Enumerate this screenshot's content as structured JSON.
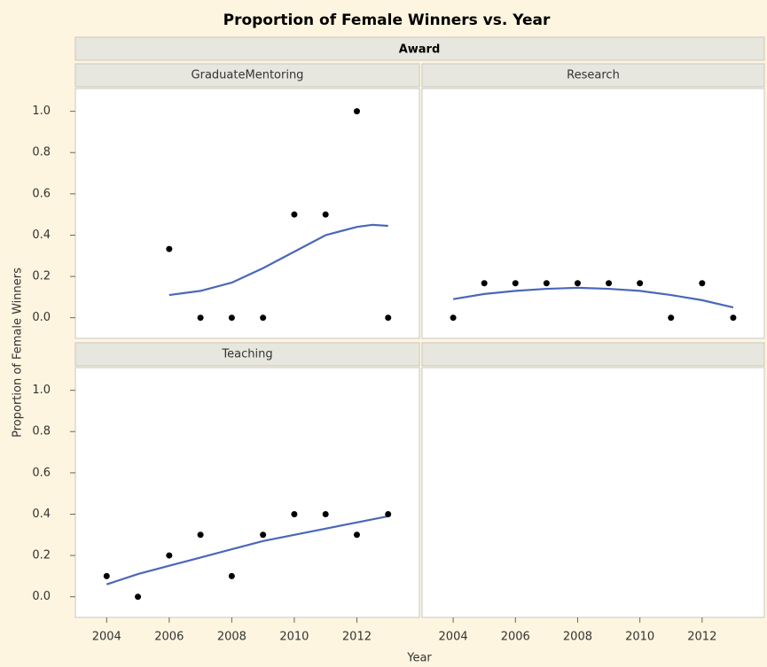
{
  "page": {
    "title": "Proportion of Female Winners vs. Year",
    "facet_label": "Award",
    "xlabel": "Year",
    "ylabel": "Proportion of Female Winners"
  },
  "chart_data": [
    {
      "type": "scatter",
      "name": "GraduateMentoring",
      "color": "#000000",
      "fit_color": "#4a68b8",
      "x": [
        2006,
        2007,
        2008,
        2009,
        2010,
        2011,
        2012,
        2013
      ],
      "values": [
        0.333,
        0,
        0,
        0,
        0.5,
        0.5,
        1.0,
        0
      ],
      "fit": {
        "x": [
          2006,
          2007,
          2008,
          2009,
          2010,
          2011,
          2012,
          2012.5,
          2013
        ],
        "values": [
          0.11,
          0.13,
          0.17,
          0.24,
          0.32,
          0.4,
          0.44,
          0.45,
          0.445
        ]
      },
      "xlim": [
        2003,
        2014
      ],
      "ylim": [
        -0.1,
        1.11
      ],
      "yticks": [
        {
          "value": 1.0,
          "label": "1.0"
        },
        0.8,
        0.6,
        0.4,
        0.2,
        {
          "value": 0,
          "label": "0.0"
        }
      ]
    },
    {
      "type": "scatter",
      "name": "Research",
      "color": "#000000",
      "fit_color": "#4a68b8",
      "x": [
        2004,
        2005,
        2006,
        2007,
        2008,
        2009,
        2010,
        2011,
        2012,
        2013
      ],
      "values": [
        0,
        0.167,
        0.167,
        0.167,
        0.167,
        0.167,
        0.167,
        0,
        0.167,
        0
      ],
      "fit": {
        "x": [
          2004,
          2005,
          2006,
          2007,
          2008,
          2009,
          2010,
          2011,
          2012,
          2013
        ],
        "values": [
          0.09,
          0.115,
          0.13,
          0.14,
          0.145,
          0.14,
          0.13,
          0.11,
          0.085,
          0.05
        ]
      },
      "xlim": [
        2003,
        2014
      ],
      "ylim": [
        -0.1,
        1.11
      ],
      "xticks": [
        2004,
        2006,
        2008,
        2010,
        2012
      ]
    },
    {
      "type": "scatter",
      "name": "Teaching",
      "color": "#000000",
      "fit_color": "#4a68b8",
      "x": [
        2004,
        2005,
        2006,
        2007,
        2008,
        2009,
        2010,
        2011,
        2012,
        2013
      ],
      "values": [
        0.1,
        0,
        0.2,
        0.3,
        0.1,
        0.3,
        0.4,
        0.4,
        0.3,
        0.4
      ],
      "fit": {
        "x": [
          2004,
          2005,
          2006,
          2007,
          2008,
          2009,
          2010,
          2011,
          2012,
          2013
        ],
        "values": [
          0.06,
          0.11,
          0.15,
          0.19,
          0.23,
          0.27,
          0.3,
          0.33,
          0.36,
          0.39
        ]
      },
      "xlim": [
        2003,
        2014
      ],
      "ylim": [
        -0.1,
        1.11
      ],
      "xticks": [
        2004,
        2006,
        2008,
        2010,
        2012
      ],
      "yticks": [
        {
          "value": 1.0,
          "label": "1.0"
        },
        0.8,
        0.6,
        0.4,
        0.2,
        {
          "value": 0,
          "label": "0.0"
        }
      ]
    }
  ]
}
